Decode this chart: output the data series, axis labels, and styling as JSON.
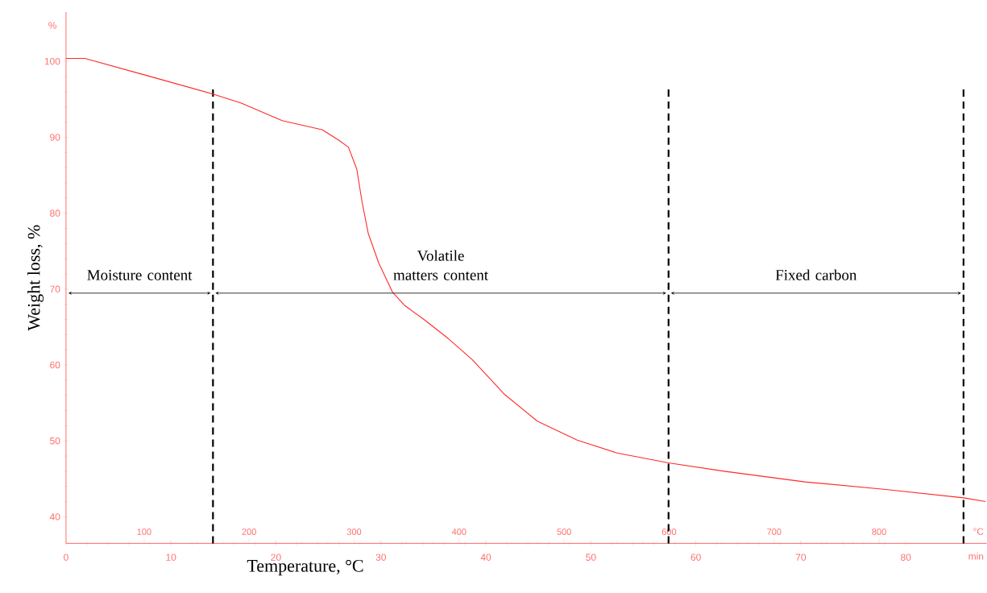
{
  "chart_data": {
    "type": "line",
    "xlabel": "Temperature, °C",
    "ylabel": "Weight loss, %",
    "x": [
      0,
      1.8,
      7.8,
      14,
      16.7,
      20.6,
      24.4,
      25.9,
      26.9,
      27.7,
      28.2,
      28.8,
      29.8,
      31.1,
      32.3,
      34.1,
      36.4,
      38.7,
      41.8,
      44.9,
      48.7,
      52.5,
      57.4,
      62.7,
      70.4,
      78.1,
      85.5,
      87.6
    ],
    "series": [
      {
        "color": "#ff2a2a",
        "values": [
          100.4,
          100.4,
          98.1,
          95.7,
          94.5,
          92.2,
          91.0,
          89.7,
          88.7,
          85.8,
          81.5,
          77.3,
          73.4,
          69.6,
          67.8,
          66.0,
          63.5,
          60.7,
          56.1,
          52.6,
          50.1,
          48.4,
          47.1,
          46.0,
          44.6,
          43.6,
          42.5,
          42.0
        ]
      }
    ],
    "xlim": [
      0,
      87.7
    ],
    "xticks": [
      0,
      10,
      20,
      30,
      40,
      50,
      60,
      70,
      80
    ],
    "ylim": [
      36.5,
      106.5
    ],
    "yticks": [
      40,
      50,
      60,
      70,
      80,
      90,
      100
    ],
    "x2lim": [
      25.6,
      902.4
    ],
    "x2ticks": [
      100,
      200,
      300,
      400,
      500,
      600,
      700,
      800
    ],
    "ref_lines": [
      {
        "axis": "x",
        "value": 14,
        "color": "#000000",
        "line_style": "dashed"
      },
      {
        "axis": "x",
        "value": 57.4,
        "color": "#000000",
        "line_style": "dashed"
      },
      {
        "axis": "x",
        "value": 85.5,
        "color": "#000000",
        "line_style": "dashed"
      }
    ],
    "annotations": [
      "Moisture content",
      "Volatile matters content",
      "Fixed carbon",
      "%",
      "min",
      "°C"
    ],
    "grid": false,
    "marker": "none",
    "line_style": "solid"
  }
}
